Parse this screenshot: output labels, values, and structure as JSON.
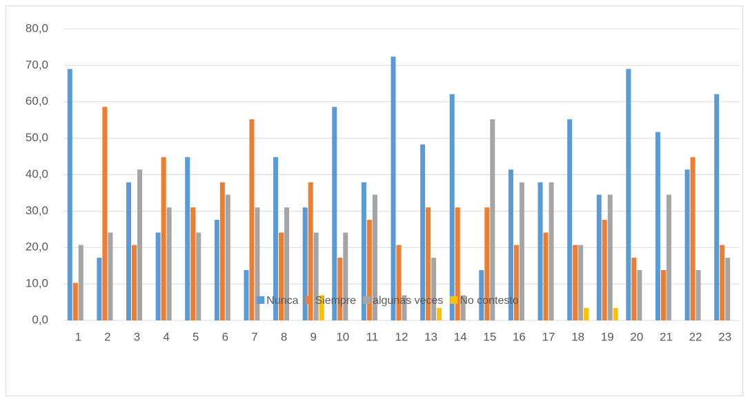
{
  "chart_data": {
    "type": "bar",
    "categories": [
      "1",
      "2",
      "3",
      "4",
      "5",
      "6",
      "7",
      "8",
      "9",
      "10",
      "11",
      "12",
      "13",
      "14",
      "15",
      "16",
      "17",
      "18",
      "19",
      "20",
      "21",
      "22",
      "23"
    ],
    "series": [
      {
        "name": "Nunca",
        "color": "#5b9bd5",
        "values": [
          69.0,
          17.2,
          37.9,
          24.1,
          44.8,
          27.6,
          13.8,
          44.8,
          31.0,
          58.6,
          37.9,
          72.4,
          48.3,
          62.1,
          13.8,
          41.4,
          37.9,
          55.2,
          34.5,
          69.0,
          51.7,
          41.4,
          62.1
        ]
      },
      {
        "name": "Siempre",
        "color": "#ed7d31",
        "values": [
          10.3,
          58.6,
          20.7,
          44.8,
          31.0,
          37.9,
          55.2,
          24.1,
          37.9,
          17.2,
          27.6,
          20.7,
          31.0,
          31.0,
          31.0,
          20.7,
          24.1,
          20.7,
          27.6,
          17.2,
          13.8,
          44.8,
          20.7
        ]
      },
      {
        "name": "algunas veces",
        "color": "#a5a5a5",
        "values": [
          20.7,
          24.1,
          41.4,
          31.0,
          24.1,
          34.5,
          31.0,
          31.0,
          24.1,
          24.1,
          34.5,
          6.9,
          17.2,
          6.9,
          55.2,
          37.9,
          37.9,
          20.7,
          34.5,
          13.8,
          34.5,
          13.8,
          17.2
        ]
      },
      {
        "name": "No contesto",
        "color": "#ffc000",
        "values": [
          0,
          0,
          0,
          0,
          0,
          0,
          0,
          0,
          6.9,
          0,
          0,
          0,
          3.4,
          0,
          0,
          0,
          0,
          3.4,
          3.4,
          0,
          0,
          0,
          0
        ]
      }
    ],
    "ylim": [
      0,
      80
    ],
    "yticks": [
      {
        "value": 0,
        "label": "0,0"
      },
      {
        "value": 10,
        "label": "10,0"
      },
      {
        "value": 20,
        "label": "20,0"
      },
      {
        "value": 30,
        "label": "30,0"
      },
      {
        "value": 40,
        "label": "40,0"
      },
      {
        "value": 50,
        "label": "50,0"
      },
      {
        "value": 60,
        "label": "60,0"
      },
      {
        "value": 70,
        "label": "70,0"
      },
      {
        "value": 80,
        "label": "80,0"
      }
    ],
    "grid": true,
    "legend": "bottom"
  }
}
